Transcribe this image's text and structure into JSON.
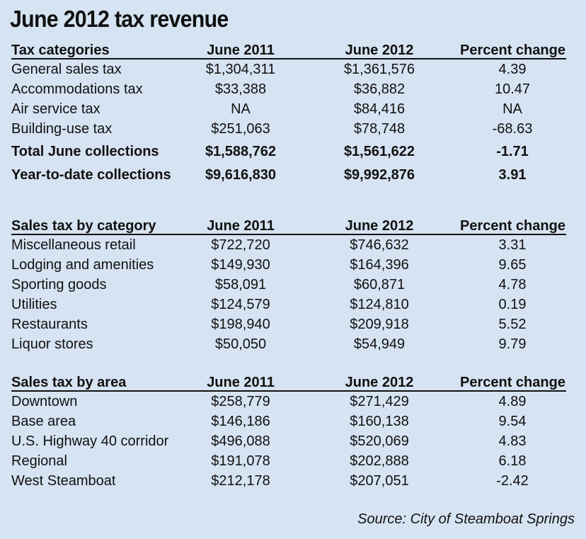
{
  "title": "June 2012 tax revenue",
  "tables": {
    "categories": {
      "headers": [
        "Tax categories",
        "June 2011",
        "June 2012",
        "Percent change"
      ],
      "rows": [
        [
          "General sales tax",
          "$1,304,311",
          "$1,361,576",
          "4.39"
        ],
        [
          "Accommodations tax",
          "$33,388",
          "$36,882",
          "10.47"
        ],
        [
          "Air service tax",
          "NA",
          "$84,416",
          "NA"
        ],
        [
          "Building-use tax",
          "$251,063",
          "$78,748",
          "-68.63"
        ]
      ],
      "totals": [
        [
          "Total June collections",
          "$1,588,762",
          "$1,561,622",
          "-1.71"
        ],
        [
          "Year-to-date collections",
          "$9,616,830",
          "$9,992,876",
          "3.91"
        ]
      ]
    },
    "by_category": {
      "headers": [
        "Sales tax by category",
        "June 2011",
        "June 2012",
        "Percent change"
      ],
      "rows": [
        [
          "Miscellaneous retail",
          "$722,720",
          "$746,632",
          "3.31"
        ],
        [
          "Lodging and amenities",
          "$149,930",
          "$164,396",
          "9.65"
        ],
        [
          "Sporting goods",
          "$58,091",
          "$60,871",
          "4.78"
        ],
        [
          "Utilities",
          "$124,579",
          "$124,810",
          "0.19"
        ],
        [
          "Restaurants",
          "$198,940",
          "$209,918",
          "5.52"
        ],
        [
          "Liquor stores",
          "$50,050",
          "$54,949",
          "9.79"
        ]
      ]
    },
    "by_area": {
      "headers": [
        "Sales tax by area",
        "June 2011",
        "June 2012",
        "Percent change"
      ],
      "rows": [
        [
          "Downtown",
          "$258,779",
          "$271,429",
          "4.89"
        ],
        [
          "Base area",
          "$146,186",
          "$160,138",
          "9.54"
        ],
        [
          "U.S. Highway 40 corridor",
          "$496,088",
          "$520,069",
          "4.83"
        ],
        [
          "Regional",
          "$191,078",
          "$202,888",
          "6.18"
        ],
        [
          "West Steamboat",
          "$212,178",
          "$207,051",
          "-2.42"
        ]
      ]
    }
  },
  "source": "Source: City of Steamboat Springs",
  "colors": {
    "background": "#d6e3f2",
    "text": "#111111"
  }
}
